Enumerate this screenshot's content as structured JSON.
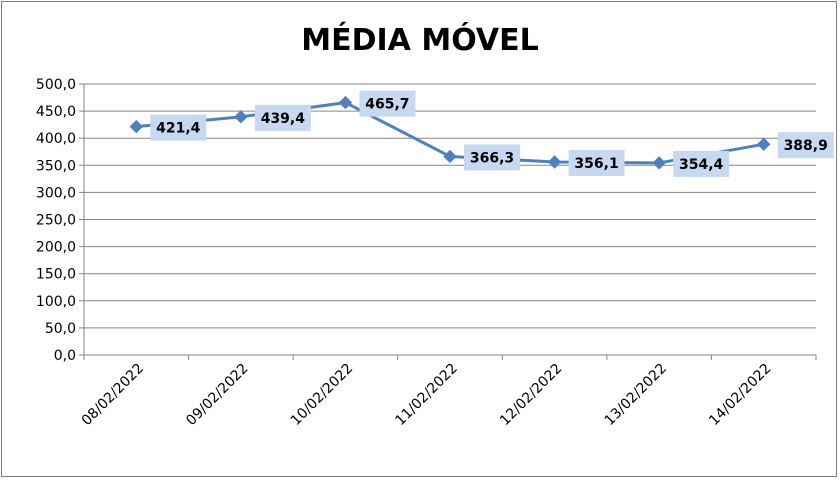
{
  "chart_data": {
    "type": "line",
    "title": "MÉDIA MÓVEL",
    "categories": [
      "08/02/2022",
      "09/02/2022",
      "10/02/2022",
      "11/02/2022",
      "12/02/2022",
      "13/02/2022",
      "14/02/2022"
    ],
    "values": [
      421.4,
      439.4,
      465.7,
      366.3,
      356.1,
      354.4,
      388.9
    ],
    "data_labels": [
      "421,4",
      "439,4",
      "465,7",
      "366,3",
      "356,1",
      "354,4",
      "388,9"
    ],
    "yticks": [
      "0,0",
      "50,0",
      "100,0",
      "150,0",
      "200,0",
      "250,0",
      "300,0",
      "350,0",
      "400,0",
      "450,0",
      "500,0"
    ],
    "ylim": [
      0,
      500
    ],
    "grid": true,
    "legend": "none",
    "colors": {
      "line": "#4F81BD",
      "marker": "#4F81BD",
      "label_bg": "#C6D9F1",
      "grid": "#868686"
    }
  }
}
